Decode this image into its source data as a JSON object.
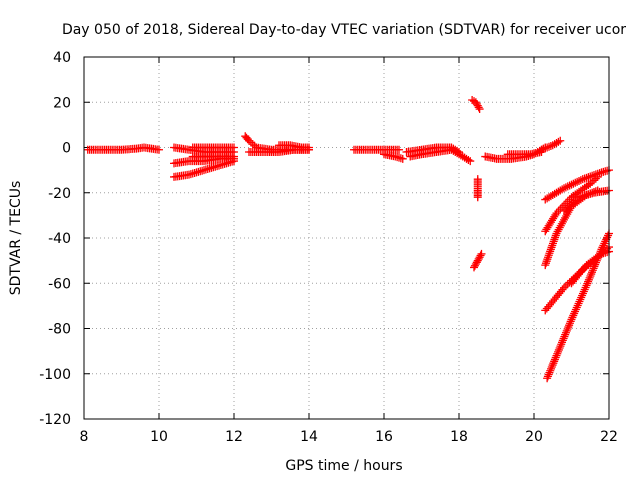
{
  "chart_data": {
    "type": "scatter",
    "title": "Day 050 of 2018, Sidereal Day-to-day VTEC variation (SDTVAR) for receiver ucor",
    "xlabel": "GPS time / hours",
    "ylabel": "SDTVAR / TECUs",
    "xlim": [
      8,
      22
    ],
    "ylim": [
      -120,
      40
    ],
    "xticks": [
      8,
      10,
      12,
      14,
      16,
      18,
      20,
      22
    ],
    "yticks": [
      40,
      20,
      0,
      -20,
      -40,
      -60,
      -80,
      -100,
      -120
    ],
    "grid": true,
    "legend": "none",
    "marker": "plus",
    "color": "#ff0000",
    "segments": [
      {
        "x": [
          8.1,
          8.6,
          9.0,
          9.4,
          9.6,
          10.0
        ],
        "y": [
          -1,
          -1,
          -1,
          -0.5,
          0,
          -1
        ]
      },
      {
        "x": [
          10.4,
          10.8,
          11.2,
          11.6,
          12.0
        ],
        "y": [
          0,
          -1,
          -2,
          -2,
          -2
        ]
      },
      {
        "x": [
          10.9,
          11.2,
          11.6,
          12.0
        ],
        "y": [
          0,
          0,
          0,
          0
        ]
      },
      {
        "x": [
          10.9,
          11.3,
          11.7,
          12.0
        ],
        "y": [
          -4,
          -4,
          -4,
          -4
        ]
      },
      {
        "x": [
          10.4,
          10.8,
          11.2,
          11.6,
          12.0
        ],
        "y": [
          -7,
          -6,
          -6,
          -5,
          -5
        ]
      },
      {
        "x": [
          10.4,
          10.8,
          11.2,
          11.6,
          12.0
        ],
        "y": [
          -13,
          -12,
          -10,
          -8,
          -6
        ]
      },
      {
        "x": [
          12.3,
          12.4,
          12.6,
          13.0,
          13.4,
          14.0
        ],
        "y": [
          5,
          3,
          0,
          -1,
          -1,
          -1
        ]
      },
      {
        "x": [
          12.4,
          12.8,
          13.2,
          13.6,
          14.0
        ],
        "y": [
          -2,
          -2,
          -2,
          -1,
          -1
        ]
      },
      {
        "x": [
          13.2,
          13.5,
          13.8,
          14.0
        ],
        "y": [
          1,
          1,
          0,
          0
        ]
      },
      {
        "x": [
          15.2,
          15.6,
          16.0,
          16.4
        ],
        "y": [
          -1,
          -1,
          -1,
          -1
        ]
      },
      {
        "x": [
          16.0,
          16.3,
          16.5
        ],
        "y": [
          -3,
          -4,
          -5
        ]
      },
      {
        "x": [
          16.6,
          17.0,
          17.4,
          17.8,
          18.0
        ],
        "y": [
          -2,
          -1,
          0,
          0,
          -2
        ]
      },
      {
        "x": [
          16.7,
          17.0,
          17.4,
          17.8,
          18.0,
          18.3
        ],
        "y": [
          -4,
          -3,
          -2,
          -1,
          -3,
          -6
        ]
      },
      {
        "x": [
          18.35,
          18.45,
          18.55
        ],
        "y": [
          21,
          20,
          17
        ]
      },
      {
        "x": [
          18.5,
          18.5,
          18.5
        ],
        "y": [
          -14,
          -19,
          -22
        ]
      },
      {
        "x": [
          18.4,
          18.5,
          18.6
        ],
        "y": [
          -53,
          -50,
          -47
        ]
      },
      {
        "x": [
          18.7,
          19.0,
          19.4,
          19.8,
          20.0,
          20.3
        ],
        "y": [
          -4,
          -5,
          -5,
          -4,
          -3,
          0
        ]
      },
      {
        "x": [
          19.3,
          19.6,
          19.9,
          20.2
        ],
        "y": [
          -3,
          -3,
          -3,
          -2
        ]
      },
      {
        "x": [
          20.2,
          20.5,
          20.7
        ],
        "y": [
          -1,
          1,
          3
        ]
      },
      {
        "x": [
          20.3,
          20.8,
          21.3,
          21.8,
          22.0
        ],
        "y": [
          -23,
          -18,
          -14,
          -11,
          -10
        ]
      },
      {
        "x": [
          20.8,
          21.2,
          21.6,
          22.0
        ],
        "y": [
          -28,
          -22,
          -20,
          -19
        ]
      },
      {
        "x": [
          20.3,
          20.6,
          21.0,
          21.5,
          21.7
        ],
        "y": [
          -37,
          -29,
          -22,
          -16,
          -13
        ]
      },
      {
        "x": [
          20.3,
          20.6,
          21.0,
          21.4,
          21.7
        ],
        "y": [
          -52,
          -38,
          -26,
          -21,
          -19
        ]
      },
      {
        "x": [
          20.3,
          20.8,
          21.3,
          21.8,
          22.0
        ],
        "y": [
          -72,
          -62,
          -54,
          -47,
          -44
        ]
      },
      {
        "x": [
          21.0,
          21.4,
          21.8,
          22.0
        ],
        "y": [
          -60,
          -52,
          -47,
          -46
        ]
      },
      {
        "x": [
          20.35,
          20.6,
          21.0,
          21.4,
          21.8,
          22.0
        ],
        "y": [
          -102,
          -92,
          -76,
          -61,
          -45,
          -38
        ]
      }
    ]
  }
}
